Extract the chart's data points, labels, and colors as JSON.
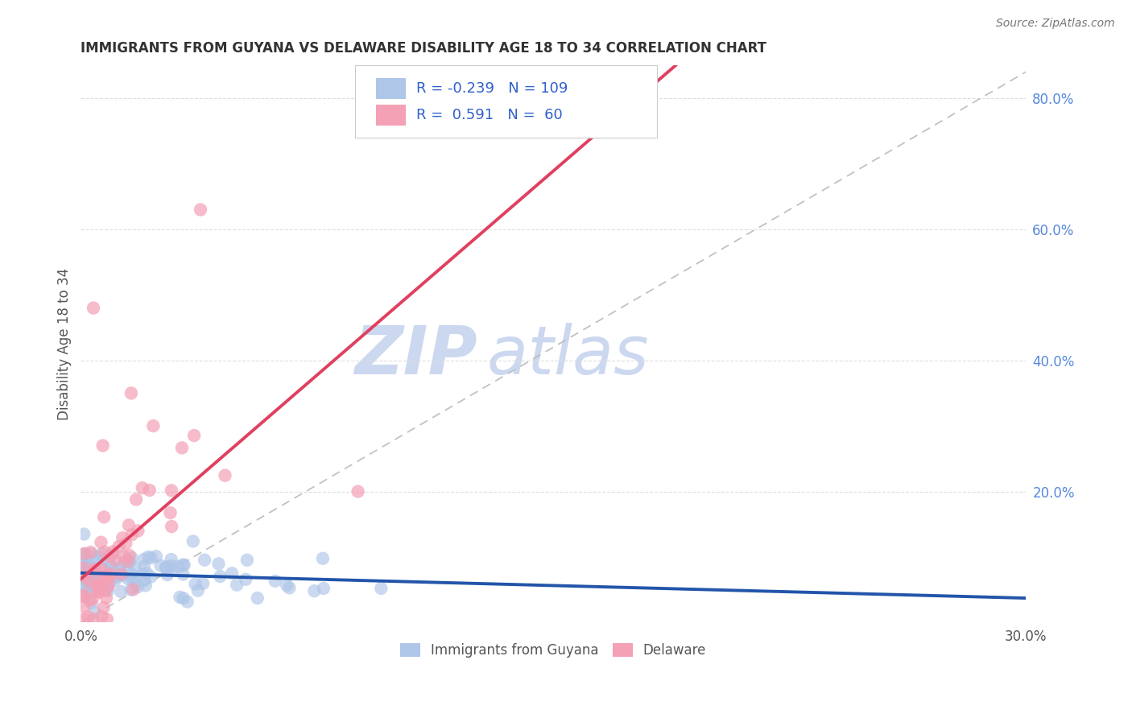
{
  "title": "IMMIGRANTS FROM GUYANA VS DELAWARE DISABILITY AGE 18 TO 34 CORRELATION CHART",
  "source": "Source: ZipAtlas.com",
  "ylabel": "Disability Age 18 to 34",
  "xlim": [
    0.0,
    0.3
  ],
  "ylim": [
    0.0,
    0.85
  ],
  "ytick_labels_right": [
    "20.0%",
    "40.0%",
    "60.0%",
    "80.0%"
  ],
  "ytick_vals_right": [
    0.2,
    0.4,
    0.6,
    0.8
  ],
  "blue_R": -0.239,
  "blue_N": 109,
  "pink_R": 0.591,
  "pink_N": 60,
  "blue_color": "#aec6e8",
  "pink_color": "#f4a0b5",
  "blue_line_color": "#2255aa",
  "pink_line_color": "#e04060",
  "ref_line_color": "#bbbbbb",
  "legend_text_color": "#3060cc",
  "title_color": "#333333",
  "watermark_zip": "ZIP",
  "watermark_atlas": "atlas",
  "watermark_color": "#ccd8f0",
  "background_color": "#ffffff",
  "grid_color": "#dddddd",
  "ylabel_color": "#555555",
  "xtick_color": "#555555",
  "ytick_color": "#5588dd"
}
